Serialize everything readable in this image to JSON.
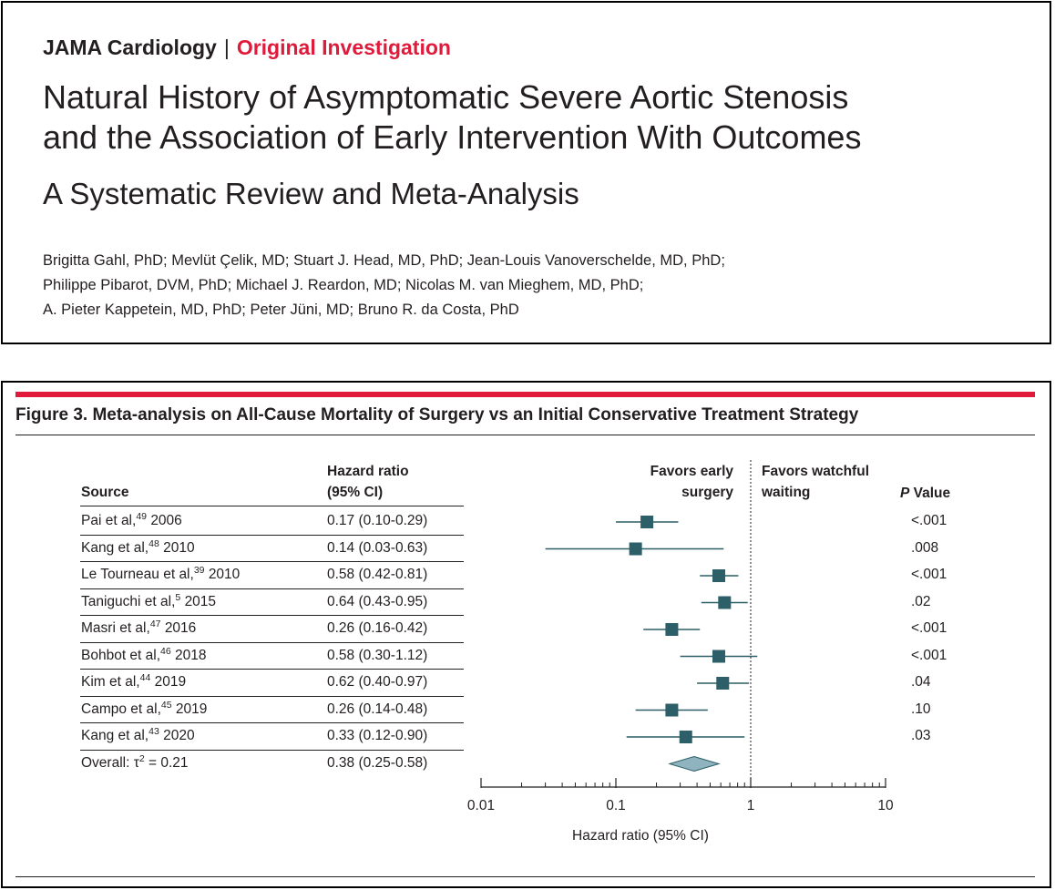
{
  "colors": {
    "accent": "#e01a3b",
    "marker": "#2c5f67",
    "diamond": "#8fb4bf"
  },
  "header": {
    "journal": "JAMA Cardiology",
    "separator": "|",
    "category": "Original Investigation",
    "title_line1": "Natural History of Asymptomatic Severe Aortic Stenosis",
    "title_line2": "and the Association of Early Intervention With Outcomes",
    "subtitle": "A Systematic Review and Meta-Analysis",
    "authors_line1": "Brigitta Gahl, PhD; Mevlüt Çelik, MD; Stuart J. Head, MD, PhD; Jean-Louis Vanoverschelde, MD, PhD;",
    "authors_line2": "Philippe Pibarot, DVM, PhD; Michael J. Reardon, MD; Nicolas M. van Mieghem, MD, PhD;",
    "authors_line3": "A. Pieter Kappetein, MD, PhD; Peter Jüni, MD; Bruno R. da Costa, PhD"
  },
  "figure": {
    "title": "Figure 3. Meta-analysis on All-Cause Mortality of Surgery vs an Initial Conservative Treatment Strategy",
    "col_source": "Source",
    "col_hr_line1": "Hazard ratio",
    "col_hr_line2": "(95% CI)",
    "favors_left_line1": "Favors early",
    "favors_left_line2": "surgery",
    "favors_right_line1": "Favors watchful",
    "favors_right_line2": "waiting",
    "col_p_italic": "P",
    "col_p_rest": " Value"
  },
  "chart_data": {
    "type": "forest",
    "xlabel": "Hazard ratio (95% CI)",
    "x_scale": "log",
    "xlim": [
      0.01,
      10
    ],
    "ticks": [
      0.01,
      0.1,
      1,
      10
    ],
    "tick_labels": [
      "0.01",
      "0.1",
      "1",
      "10"
    ],
    "reference_line": 1,
    "studies": [
      {
        "source": "Pai et al,",
        "ref": "49",
        "year": "2006",
        "hr": 0.17,
        "lo": 0.1,
        "hi": 0.29,
        "ci_text": "0.17 (0.10-0.29)",
        "p": "<.001"
      },
      {
        "source": "Kang et al,",
        "ref": "48",
        "year": "2010",
        "hr": 0.14,
        "lo": 0.03,
        "hi": 0.63,
        "ci_text": "0.14 (0.03-0.63)",
        "p": ".008"
      },
      {
        "source": "Le Tourneau et al,",
        "ref": "39",
        "year": "2010",
        "hr": 0.58,
        "lo": 0.42,
        "hi": 0.81,
        "ci_text": "0.58 (0.42-0.81)",
        "p": "<.001"
      },
      {
        "source": "Taniguchi et al,",
        "ref": "5",
        "year": "2015",
        "hr": 0.64,
        "lo": 0.43,
        "hi": 0.95,
        "ci_text": "0.64 (0.43-0.95)",
        "p": ".02"
      },
      {
        "source": "Masri et al,",
        "ref": "47",
        "year": "2016",
        "hr": 0.26,
        "lo": 0.16,
        "hi": 0.42,
        "ci_text": "0.26 (0.16-0.42)",
        "p": "<.001"
      },
      {
        "source": "Bohbot et al,",
        "ref": "46",
        "year": "2018",
        "hr": 0.58,
        "lo": 0.3,
        "hi": 1.12,
        "ci_text": "0.58 (0.30-1.12)",
        "p": "<.001"
      },
      {
        "source": "Kim et al,",
        "ref": "44",
        "year": "2019",
        "hr": 0.62,
        "lo": 0.4,
        "hi": 0.97,
        "ci_text": "0.62 (0.40-0.97)",
        "p": ".04"
      },
      {
        "source": "Campo et al,",
        "ref": "45",
        "year": "2019",
        "hr": 0.26,
        "lo": 0.14,
        "hi": 0.48,
        "ci_text": "0.26 (0.14-0.48)",
        "p": ".10"
      },
      {
        "source": "Kang et al,",
        "ref": "43",
        "year": "2020",
        "hr": 0.33,
        "lo": 0.12,
        "hi": 0.9,
        "ci_text": "0.33 (0.12-0.90)",
        "p": ".03"
      }
    ],
    "overall": {
      "label_pre": "Overall: τ",
      "label_sup": "2",
      "label_post": " = 0.21",
      "hr": 0.38,
      "lo": 0.25,
      "hi": 0.58,
      "ci_text": "0.38 (0.25-0.58)"
    }
  }
}
